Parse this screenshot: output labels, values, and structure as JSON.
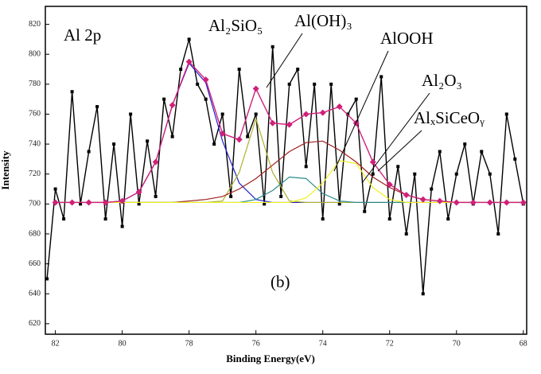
{
  "chart_data": {
    "type": "line",
    "xlabel": "Binding Energy(eV)",
    "ylabel": "Intensity",
    "xlim": [
      82.3,
      67.9
    ],
    "ylim": [
      613,
      832
    ],
    "xticks": [
      82,
      80,
      78,
      76,
      74,
      72,
      70,
      68
    ],
    "yticks": [
      620,
      640,
      660,
      680,
      700,
      720,
      740,
      760,
      780,
      800,
      820
    ],
    "annotations": [
      "Al 2p",
      "(b)"
    ],
    "series": [
      {
        "color": "#000000",
        "marker": "square",
        "x": [
          82.25,
          82,
          81.75,
          81.5,
          81.25,
          81,
          80.75,
          80.5,
          80.25,
          80,
          79.75,
          79.5,
          79.25,
          79,
          78.75,
          78.5,
          78.25,
          78,
          77.75,
          77.5,
          77.25,
          77,
          76.75,
          76.5,
          76.25,
          76,
          75.75,
          75.5,
          75.25,
          75,
          74.75,
          74.5,
          74.25,
          74,
          73.75,
          73.5,
          73.25,
          73,
          72.75,
          72.5,
          72.25,
          72,
          71.75,
          71.5,
          71.25,
          71,
          70.75,
          70.5,
          70.25,
          70,
          69.75,
          69.5,
          69.25,
          69,
          68.75,
          68.5,
          68.25,
          68
        ],
        "values": [
          650,
          710,
          690,
          775,
          700,
          735,
          765,
          690,
          740,
          685,
          760,
          700,
          742,
          705,
          770,
          745,
          790,
          810,
          780,
          770,
          740,
          760,
          705,
          790,
          745,
          760,
          700,
          805,
          705,
          780,
          790,
          725,
          780,
          690,
          780,
          700,
          760,
          770,
          695,
          720,
          785,
          690,
          725,
          680,
          720,
          640,
          710,
          735,
          690,
          720,
          740,
          700,
          735,
          720,
          680,
          760,
          730,
          700
        ]
      },
      {
        "color": "#d0207a",
        "marker": "diamond",
        "x": [
          82,
          81.5,
          81,
          80.5,
          80,
          79.5,
          79,
          78.5,
          78,
          77.5,
          77,
          76.5,
          76,
          75.5,
          75,
          74.5,
          74,
          73.5,
          73,
          72.5,
          72,
          71.5,
          71,
          70.5,
          70,
          69.5,
          69,
          68.5,
          68
        ],
        "values": [
          701,
          701,
          701,
          701,
          702,
          708,
          728,
          766,
          795,
          783,
          747,
          743,
          777,
          754,
          753,
          760,
          761,
          765,
          754,
          728,
          713,
          706,
          703,
          702,
          701,
          701,
          701,
          701,
          701
        ]
      },
      {
        "name": "Al₂SiO₅",
        "color": "#2020d0",
        "x": [
          82,
          81.5,
          81,
          80.5,
          80,
          79.5,
          79,
          78.5,
          78,
          77.5,
          77,
          76.5,
          76,
          75.5,
          75,
          74.5,
          74,
          73.5,
          73,
          72.5,
          72,
          71.5,
          71,
          70.5,
          70,
          69.5,
          69,
          68.5,
          68
        ],
        "values": [
          701,
          701,
          701,
          701,
          702,
          708,
          728,
          766,
          794,
          781,
          742,
          714,
          703,
          701,
          701,
          701,
          701,
          701,
          701,
          701,
          701,
          701,
          701,
          701,
          701,
          701,
          701,
          701,
          701
        ]
      },
      {
        "name": "Al(OH)₃",
        "color": "#b0b030",
        "x": [
          82,
          81.5,
          81,
          80.5,
          80,
          79.5,
          79,
          78.5,
          78,
          77.5,
          77,
          76.5,
          76,
          75.5,
          75,
          74.5,
          74,
          73.5,
          73,
          72.5,
          72,
          71.5,
          71,
          70.5,
          70,
          69.5,
          69,
          68.5,
          68
        ],
        "values": [
          701,
          701,
          701,
          701,
          701,
          701,
          701,
          701,
          701,
          701,
          702,
          721,
          757,
          721,
          702,
          701,
          701,
          701,
          701,
          701,
          701,
          701,
          701,
          701,
          701,
          701,
          701,
          701,
          701
        ]
      },
      {
        "name": "AlOOH",
        "color": "#a02020",
        "x": [
          82,
          81.5,
          81,
          80.5,
          80,
          79.5,
          79,
          78.5,
          78,
          77.5,
          77,
          76.5,
          76,
          75.5,
          75,
          74.5,
          74,
          73.5,
          73,
          72.5,
          72,
          71.5,
          71,
          70.5,
          70,
          69.5,
          69,
          68.5,
          68
        ],
        "values": [
          701,
          701,
          701,
          701,
          701,
          701,
          701,
          701,
          702,
          703,
          705,
          710,
          717,
          726,
          735,
          741,
          742,
          736,
          728,
          718,
          711,
          706,
          703,
          702,
          701,
          701,
          701,
          701,
          701
        ]
      },
      {
        "name": "Al₂O₃",
        "color": "#2a8a8a",
        "x": [
          82,
          81.5,
          81,
          80.5,
          80,
          79.5,
          79,
          78.5,
          78,
          77.5,
          77,
          76.5,
          76,
          75.5,
          75,
          74.5,
          74,
          73.5,
          73,
          72.5,
          72,
          71.5,
          71,
          70.5,
          70,
          69.5,
          69,
          68.5,
          68
        ],
        "values": [
          701,
          701,
          701,
          701,
          701,
          701,
          701,
          701,
          701,
          701,
          701,
          701,
          703,
          709,
          718,
          717,
          707,
          702,
          701,
          701,
          701,
          701,
          701,
          701,
          701,
          701,
          701,
          701,
          701
        ]
      },
      {
        "name": "AlₓSiCeOᵧ",
        "color": "#f0f020",
        "x": [
          82,
          81.5,
          81,
          80.5,
          80,
          79.5,
          79,
          78.5,
          78,
          77.5,
          77,
          76.5,
          76,
          75.5,
          75,
          74.5,
          74,
          73.5,
          73,
          72.5,
          72,
          71.5,
          71,
          70.5,
          70,
          69.5,
          69,
          68.5,
          68
        ],
        "values": [
          701,
          701,
          701,
          701,
          701,
          701,
          701,
          701,
          701,
          701,
          701,
          701,
          701,
          701,
          701,
          704,
          714,
          729,
          727,
          711,
          703,
          701,
          701,
          701,
          701,
          701,
          701,
          701,
          701
        ]
      }
    ]
  }
}
